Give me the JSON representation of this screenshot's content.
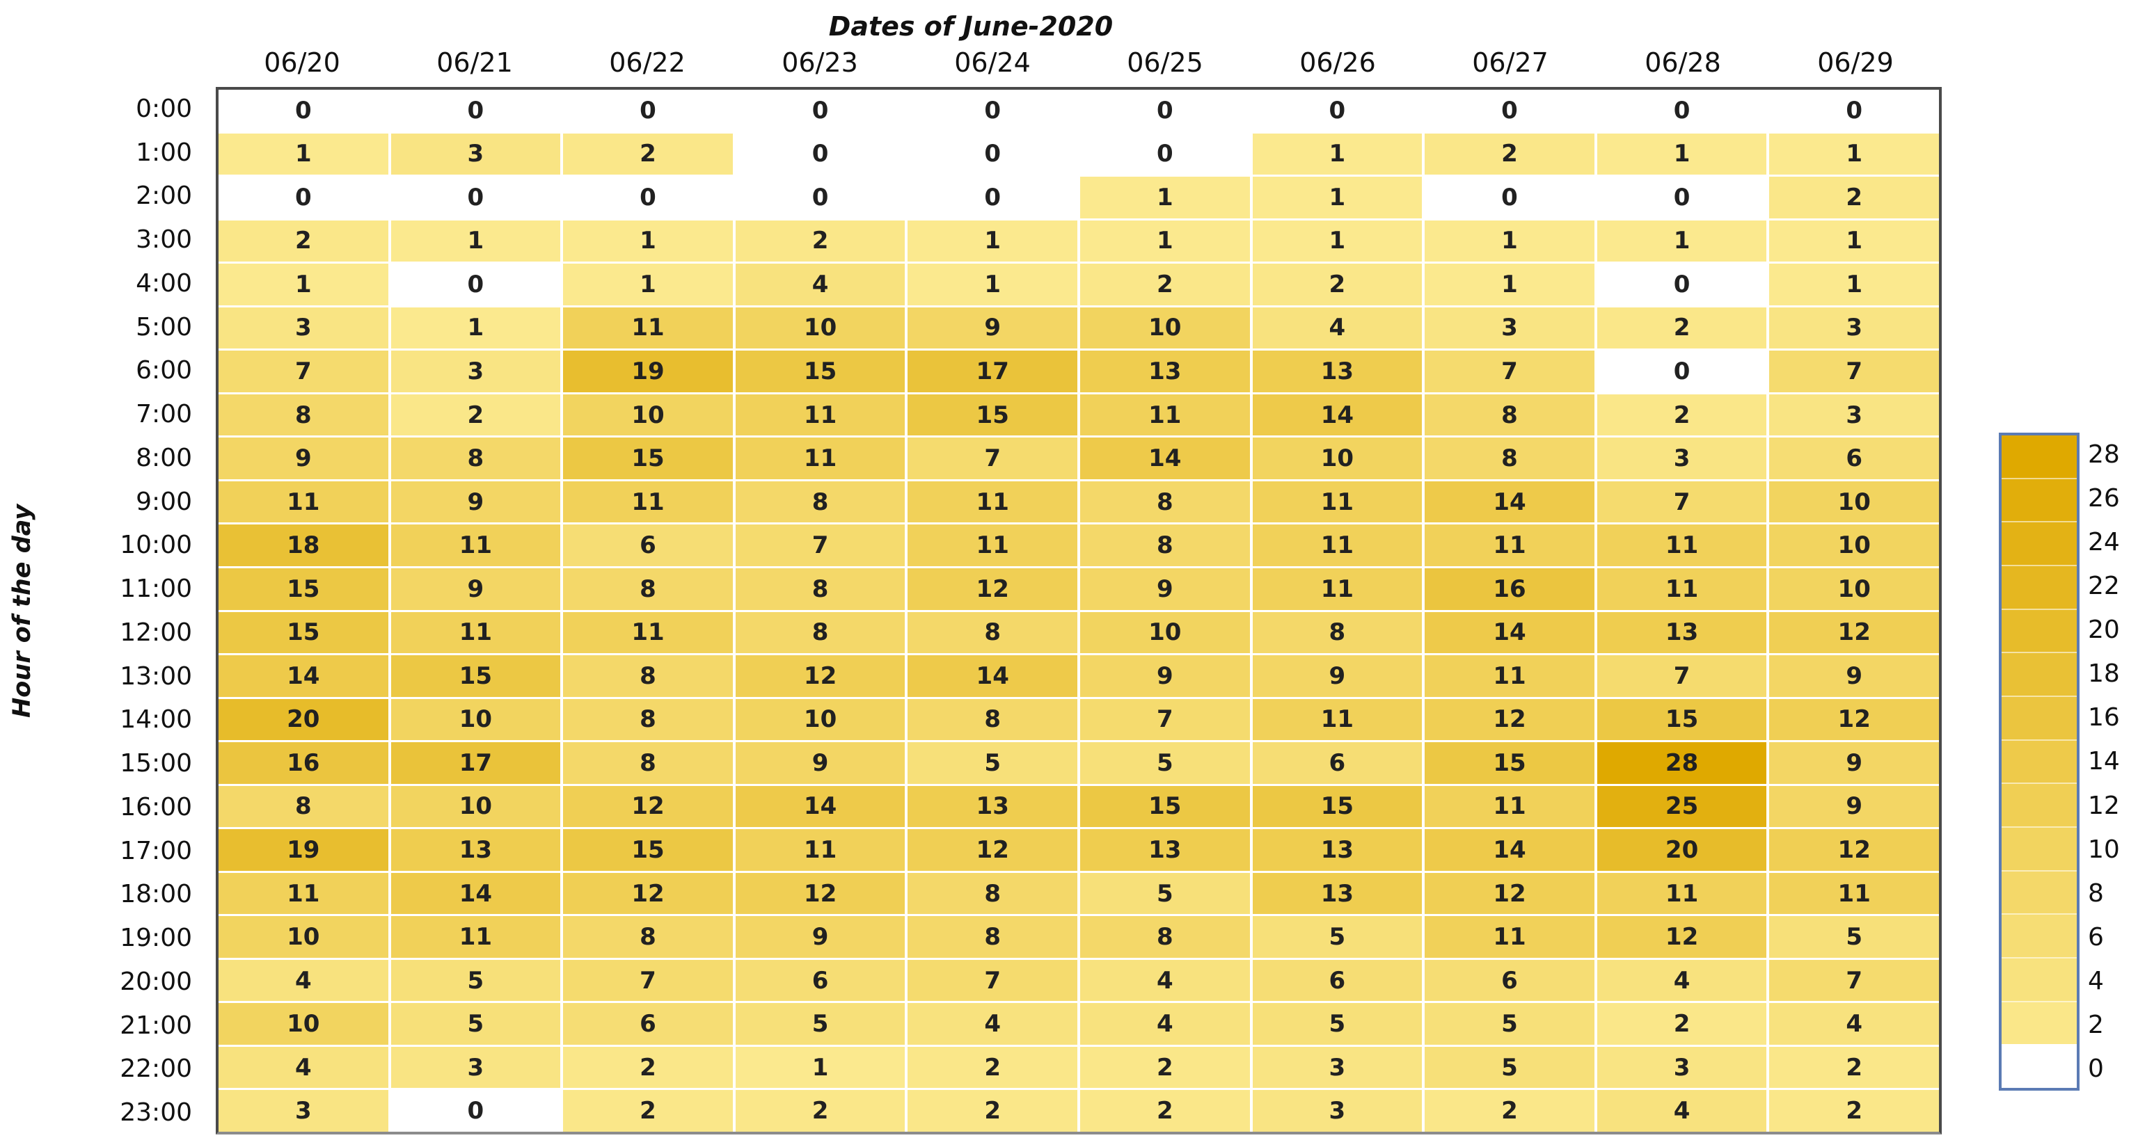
{
  "chart_data": {
    "type": "heatmap",
    "title": "Dates of June-2020",
    "ylabel": "Hour of the day",
    "x_categories": [
      "06/20",
      "06/21",
      "06/22",
      "06/23",
      "06/24",
      "06/25",
      "06/26",
      "06/27",
      "06/28",
      "06/29"
    ],
    "y_categories": [
      "0:00",
      "1:00",
      "2:00",
      "3:00",
      "4:00",
      "5:00",
      "6:00",
      "7:00",
      "8:00",
      "9:00",
      "10:00",
      "11:00",
      "12:00",
      "13:00",
      "14:00",
      "15:00",
      "16:00",
      "17:00",
      "18:00",
      "19:00",
      "20:00",
      "21:00",
      "22:00",
      "23:00"
    ],
    "values": [
      [
        0,
        0,
        0,
        0,
        0,
        0,
        0,
        0,
        0,
        0
      ],
      [
        1,
        3,
        2,
        0,
        0,
        0,
        1,
        2,
        1,
        1
      ],
      [
        0,
        0,
        0,
        0,
        0,
        1,
        1,
        0,
        0,
        2
      ],
      [
        2,
        1,
        1,
        2,
        1,
        1,
        1,
        1,
        1,
        1
      ],
      [
        1,
        0,
        1,
        4,
        1,
        2,
        2,
        1,
        0,
        1
      ],
      [
        3,
        1,
        11,
        10,
        9,
        10,
        4,
        3,
        2,
        3
      ],
      [
        7,
        3,
        19,
        15,
        17,
        13,
        13,
        7,
        0,
        7
      ],
      [
        8,
        2,
        10,
        11,
        15,
        11,
        14,
        8,
        2,
        3
      ],
      [
        9,
        8,
        15,
        11,
        7,
        14,
        10,
        8,
        3,
        6
      ],
      [
        11,
        9,
        11,
        8,
        11,
        8,
        11,
        14,
        7,
        10
      ],
      [
        18,
        11,
        6,
        7,
        11,
        8,
        11,
        11,
        11,
        10
      ],
      [
        15,
        9,
        8,
        8,
        12,
        9,
        11,
        16,
        11,
        10
      ],
      [
        15,
        11,
        11,
        8,
        8,
        10,
        8,
        14,
        13,
        12
      ],
      [
        14,
        15,
        8,
        12,
        14,
        9,
        9,
        11,
        7,
        9
      ],
      [
        20,
        10,
        8,
        10,
        8,
        7,
        11,
        12,
        15,
        12
      ],
      [
        16,
        17,
        8,
        9,
        5,
        5,
        6,
        15,
        28,
        9
      ],
      [
        8,
        10,
        12,
        14,
        13,
        15,
        15,
        11,
        25,
        9
      ],
      [
        19,
        13,
        15,
        11,
        12,
        13,
        13,
        14,
        20,
        12
      ],
      [
        11,
        14,
        12,
        12,
        8,
        5,
        13,
        12,
        11,
        11
      ],
      [
        10,
        11,
        8,
        9,
        8,
        8,
        5,
        11,
        12,
        5
      ],
      [
        4,
        5,
        7,
        6,
        7,
        4,
        6,
        6,
        4,
        7
      ],
      [
        10,
        5,
        6,
        5,
        4,
        4,
        5,
        5,
        2,
        4
      ],
      [
        4,
        3,
        2,
        1,
        2,
        2,
        3,
        5,
        3,
        2
      ],
      [
        3,
        0,
        2,
        2,
        2,
        2,
        3,
        2,
        4,
        2
      ]
    ],
    "value_range": [
      0,
      28
    ],
    "legend_ticks": [
      28,
      26,
      24,
      22,
      20,
      18,
      16,
      14,
      12,
      10,
      8,
      6,
      4,
      2,
      0
    ],
    "legend_position": "right",
    "grid": "white gaps between cells",
    "colors": {
      "zero_cell": "#FFFFFF",
      "low_color": "#FBE98E",
      "high_color": "#DFA900",
      "low_anchor_value": 1,
      "high_anchor_value": 28,
      "legend_border": "#5B7BB4",
      "plot_border": "#4A4A4A",
      "cell_text": "#212121"
    }
  }
}
